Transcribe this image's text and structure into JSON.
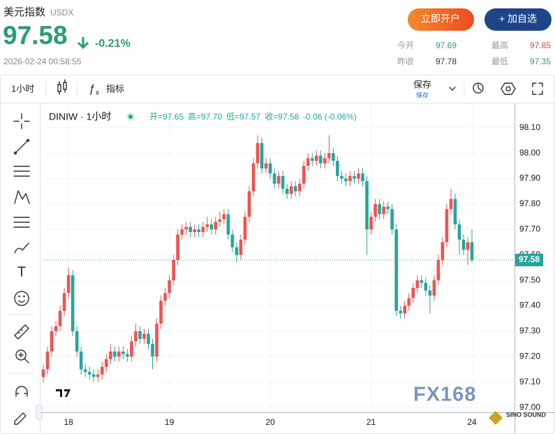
{
  "header": {
    "title": "美元指数",
    "symbol": "USDX",
    "price": 97.58,
    "change": "-0.21%",
    "timestamp": "2026-02-24 00:58:55",
    "buttons": [
      "立即开户",
      "+ 加自选"
    ],
    "stats": [
      {
        "label": "今开",
        "value": 97.69
      },
      {
        "label": "最高",
        "value": 97.85
      },
      {
        "label": "昨收",
        "value": 97.78
      },
      {
        "label": "最低",
        "value": 97.35
      }
    ]
  },
  "toolbar": {
    "interval": "1小时",
    "indicators": "指标",
    "save": "保存",
    "save_sub": "保存"
  },
  "watermark": {
    "brand": "FX168",
    "sub": "SINO SOUND"
  },
  "chart_data": {
    "type": "candlestick",
    "symbol_label": "DINIW · 1小时",
    "ohlc_legend": [
      "开=97.65",
      "高=97.70",
      "低=97.57",
      "收=97.58",
      "-0.06 (-0.06%)"
    ],
    "up_color": "#ef5350",
    "down_color": "#26a69a",
    "grid": true,
    "current_price": 97.58,
    "ylim": [
      96.97,
      98.19
    ],
    "yticks": [
      {
        "value": 97.0,
        "label": "97.00"
      },
      {
        "value": 97.1,
        "label": "97.10"
      },
      {
        "value": 97.2,
        "label": "97.20"
      },
      {
        "value": 97.3,
        "label": "97.30"
      },
      {
        "value": 97.4,
        "label": "97.40"
      },
      {
        "value": 97.5,
        "label": "97.50"
      },
      {
        "value": 97.6,
        "label": "97.60"
      },
      {
        "value": 97.7,
        "label": "97.70"
      },
      {
        "value": 97.8,
        "label": "97.80"
      },
      {
        "value": 97.9,
        "label": "97.90"
      },
      {
        "value": 98.0,
        "label": "98.00"
      },
      {
        "value": 98.1,
        "label": "98.10"
      }
    ],
    "categories": [
      null,
      null,
      null,
      null,
      null,
      null,
      "18",
      null,
      null,
      null,
      null,
      null,
      null,
      null,
      null,
      null,
      null,
      null,
      null,
      null,
      null,
      null,
      null,
      null,
      null,
      null,
      null,
      null,
      null,
      null,
      "19",
      null,
      null,
      null,
      null,
      null,
      null,
      null,
      null,
      null,
      null,
      null,
      null,
      null,
      null,
      null,
      null,
      null,
      null,
      null,
      null,
      null,
      null,
      null,
      "20",
      null,
      null,
      null,
      null,
      null,
      null,
      null,
      null,
      null,
      null,
      null,
      null,
      null,
      null,
      null,
      null,
      null,
      null,
      null,
      null,
      null,
      null,
      null,
      "21",
      null,
      null,
      null,
      null,
      null,
      null,
      null,
      null,
      null,
      null,
      null,
      null,
      null,
      null,
      null,
      null,
      null,
      null,
      null,
      null,
      null,
      null,
      null,
      "24"
    ],
    "series": {
      "open": [
        97.12,
        97.15,
        97.22,
        97.3,
        97.32,
        97.38,
        97.45,
        97.52,
        97.3,
        97.22,
        97.15,
        97.14,
        97.13,
        97.12,
        97.13,
        97.16,
        97.19,
        97.22,
        97.2,
        97.22,
        97.21,
        97.2,
        97.26,
        97.3,
        97.27,
        97.29,
        97.25,
        97.2,
        97.33,
        97.42,
        97.45,
        97.5,
        97.58,
        97.68,
        97.7,
        97.71,
        97.69,
        97.7,
        97.69,
        97.71,
        97.72,
        97.7,
        97.73,
        97.74,
        97.76,
        97.68,
        97.63,
        97.6,
        97.66,
        97.75,
        97.85,
        97.96,
        98.04,
        97.94,
        97.96,
        97.92,
        97.88,
        97.91,
        97.86,
        97.84,
        97.87,
        97.85,
        97.88,
        97.95,
        97.98,
        97.97,
        97.99,
        97.96,
        97.98,
        98.0,
        97.97,
        97.91,
        97.9,
        97.89,
        97.91,
        97.9,
        97.92,
        97.89,
        97.7,
        97.75,
        97.8,
        97.76,
        97.79,
        97.78,
        97.7,
        97.38,
        97.37,
        97.4,
        97.43,
        97.47,
        97.5,
        97.49,
        97.46,
        97.44,
        97.5,
        97.58,
        97.65,
        97.78,
        97.82,
        97.72,
        97.66,
        97.62,
        97.65
      ],
      "high": [
        97.17,
        97.24,
        97.32,
        97.34,
        97.4,
        97.47,
        97.55,
        97.54,
        97.32,
        97.24,
        97.17,
        97.16,
        97.15,
        97.15,
        97.18,
        97.21,
        97.25,
        97.24,
        97.24,
        97.24,
        97.23,
        97.28,
        97.33,
        97.32,
        97.31,
        97.31,
        97.27,
        97.35,
        97.44,
        97.47,
        97.52,
        97.6,
        97.7,
        97.72,
        97.73,
        97.73,
        97.72,
        97.72,
        97.73,
        97.75,
        97.74,
        97.75,
        97.77,
        97.78,
        97.78,
        97.7,
        97.65,
        97.68,
        97.77,
        97.87,
        97.98,
        98.07,
        98.06,
        97.98,
        97.98,
        97.94,
        97.93,
        97.93,
        97.88,
        97.89,
        97.89,
        97.9,
        97.97,
        98.0,
        98.0,
        98.01,
        98.01,
        98.0,
        98.07,
        98.02,
        97.99,
        97.93,
        97.92,
        97.93,
        97.93,
        97.94,
        97.94,
        97.91,
        97.77,
        97.82,
        97.82,
        97.81,
        97.81,
        97.8,
        97.72,
        97.4,
        97.42,
        97.45,
        97.49,
        97.52,
        97.52,
        97.51,
        97.48,
        97.52,
        97.6,
        97.67,
        97.8,
        97.86,
        97.84,
        97.74,
        97.68,
        97.67,
        97.7
      ],
      "low": [
        97.1,
        97.13,
        97.2,
        97.28,
        97.3,
        97.36,
        97.43,
        97.28,
        97.2,
        97.13,
        97.12,
        97.11,
        97.1,
        97.1,
        97.11,
        97.14,
        97.17,
        97.18,
        97.18,
        97.19,
        97.18,
        97.18,
        97.24,
        97.25,
        97.25,
        97.23,
        97.15,
        97.18,
        97.31,
        97.4,
        97.43,
        97.48,
        97.56,
        97.66,
        97.68,
        97.67,
        97.67,
        97.67,
        97.67,
        97.69,
        97.68,
        97.68,
        97.71,
        97.72,
        97.66,
        97.61,
        97.57,
        97.58,
        97.64,
        97.73,
        97.83,
        97.94,
        97.92,
        97.92,
        97.9,
        97.86,
        97.86,
        97.84,
        97.82,
        97.82,
        97.83,
        97.83,
        97.86,
        97.93,
        97.95,
        97.95,
        97.94,
        97.94,
        97.96,
        97.95,
        97.89,
        97.88,
        97.87,
        97.87,
        97.88,
        97.88,
        97.87,
        97.6,
        97.68,
        97.73,
        97.74,
        97.74,
        97.76,
        97.68,
        97.36,
        97.35,
        97.35,
        97.38,
        97.41,
        97.45,
        97.47,
        97.44,
        97.37,
        97.42,
        97.48,
        97.56,
        97.63,
        97.76,
        97.7,
        97.6,
        97.6,
        97.56,
        97.57
      ],
      "close": [
        97.15,
        97.22,
        97.3,
        97.32,
        97.38,
        97.45,
        97.52,
        97.3,
        97.22,
        97.15,
        97.14,
        97.13,
        97.12,
        97.13,
        97.16,
        97.19,
        97.22,
        97.2,
        97.22,
        97.21,
        97.2,
        97.26,
        97.3,
        97.27,
        97.29,
        97.25,
        97.2,
        97.33,
        97.42,
        97.45,
        97.5,
        97.58,
        97.68,
        97.7,
        97.71,
        97.69,
        97.7,
        97.69,
        97.71,
        97.72,
        97.7,
        97.73,
        97.74,
        97.76,
        97.68,
        97.63,
        97.6,
        97.66,
        97.75,
        97.85,
        97.96,
        98.04,
        97.94,
        97.96,
        97.92,
        97.88,
        97.91,
        97.86,
        97.84,
        97.87,
        97.85,
        97.88,
        97.95,
        97.98,
        97.97,
        97.99,
        97.96,
        97.98,
        98.0,
        97.97,
        97.91,
        97.9,
        97.89,
        97.91,
        97.9,
        97.92,
        97.89,
        97.7,
        97.75,
        97.8,
        97.76,
        97.79,
        97.78,
        97.7,
        97.38,
        97.37,
        97.4,
        97.43,
        97.47,
        97.5,
        97.49,
        97.46,
        97.44,
        97.5,
        97.58,
        97.65,
        97.78,
        97.82,
        97.72,
        97.66,
        97.62,
        97.65,
        97.58
      ]
    }
  }
}
